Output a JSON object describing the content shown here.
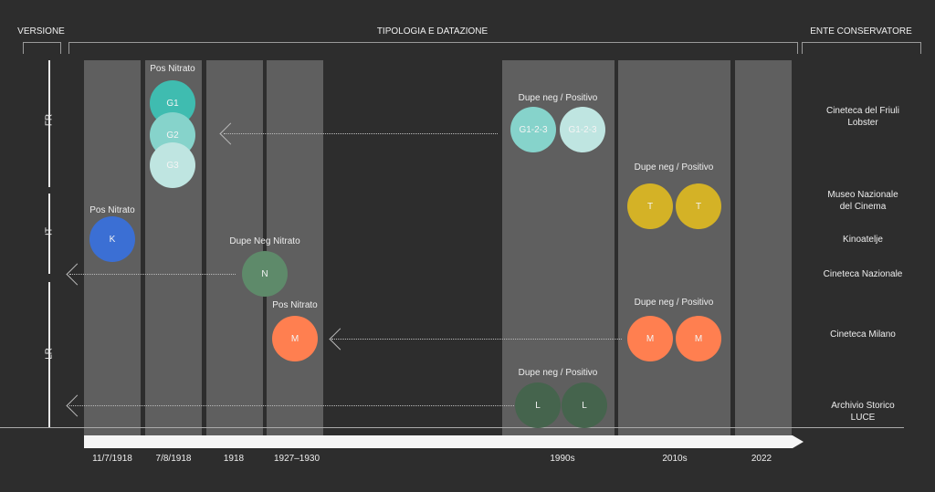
{
  "headers": {
    "versione": "VERSIONE",
    "tipologia": "TIPOLOGIA E DATAZIONE",
    "ente": "ENTE CONSERVATORE"
  },
  "versions": [
    "FR",
    "IT",
    "LR"
  ],
  "dates": [
    "11/7/1918",
    "7/8/1918",
    "1918",
    "1927–1930",
    "1990s",
    "2010s",
    "2022"
  ],
  "labels": {
    "g_pos": "Pos Nitrato",
    "k_pos": "Pos Nitrato",
    "n_dupe": "Dupe Neg Nitrato",
    "m_pos": "Pos Nitrato",
    "g_dupe": "Dupe neg / Positivo",
    "t_dupe": "Dupe neg / Positivo",
    "m_dupe": "Dupe neg / Positivo",
    "l_dupe": "Dupe neg / Positivo"
  },
  "circles": {
    "g1": "G1",
    "g2": "G2",
    "g3": "G3",
    "k": "K",
    "n": "N",
    "m": "M",
    "g123": "G1-2-3",
    "t": "T",
    "l": "L"
  },
  "ente": {
    "friuli1": "Cineteca del Friuli",
    "friuli2": "Lobster",
    "museo1": "Museo Nazionale",
    "museo2": "del Cinema",
    "kino": "Kinoatelje",
    "nazionale": "Cineteca Nazionale",
    "milano": "Cineteca Milano",
    "luce1": "Archivio Storico",
    "luce2": "LUCE"
  },
  "colors": {
    "g1": "#3fbcb0",
    "g2": "#86d3cb",
    "g3": "#bfe5e1",
    "k": "#3b6fd4",
    "n": "#5e8a6a",
    "m": "#ff7f50",
    "t": "#d4b226",
    "l": "#45644d"
  }
}
